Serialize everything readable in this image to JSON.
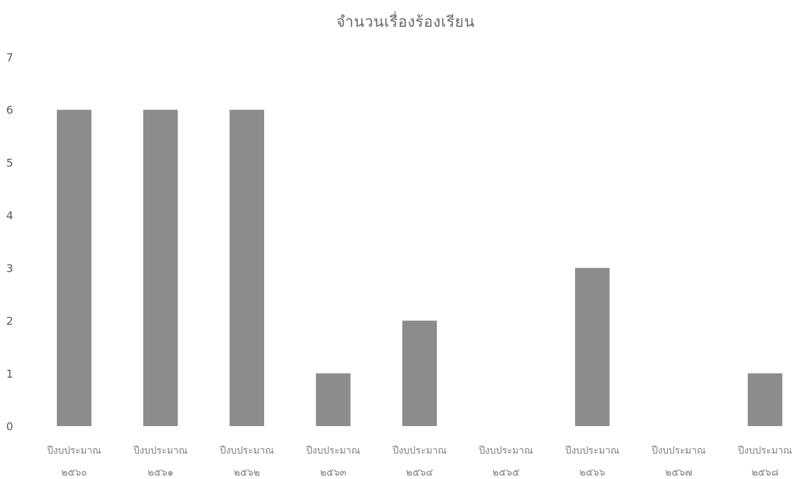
{
  "chart_data": {
    "type": "bar",
    "title": "จำนวนเรื่องร้องเรียน",
    "xlabel": "",
    "ylabel": "",
    "ylim": [
      0,
      7
    ],
    "yticks": [
      0,
      1,
      2,
      3,
      4,
      5,
      6,
      7
    ],
    "grid": false,
    "legend": "none",
    "bar_color": "#8c8c8c",
    "categories": [
      "ปีงบประมาณ ๒๕๖๐",
      "ปีงบประมาณ ๒๕๖๑",
      "ปีงบประมาณ ๒๕๖๒",
      "ปีงบประมาณ ๒๕๖๓",
      "ปีงบประมาณ ๒๕๖๔",
      "ปีงบประมาณ ๒๕๖๕",
      "ปีงบประมาณ ๒๕๖๖",
      "ปีงบประมาณ ๒๕๖๗",
      "ปีงบประมาณ ๒๕๖๘"
    ],
    "category_lines": [
      [
        "ปีงบประมาณ",
        "๒๕๖๐"
      ],
      [
        "ปีงบประมาณ",
        "๒๕๖๑"
      ],
      [
        "ปีงบประมาณ",
        "๒๕๖๒"
      ],
      [
        "ปีงบประมาณ",
        "๒๕๖๓"
      ],
      [
        "ปีงบประมาณ",
        "๒๕๖๔"
      ],
      [
        "ปีงบประมาณ",
        "๒๕๖๕"
      ],
      [
        "ปีงบประมาณ",
        "๒๕๖๖"
      ],
      [
        "ปีงบประมาณ",
        "๒๕๖๗"
      ],
      [
        "ปีงบประมาณ",
        "๒๕๖๘"
      ]
    ],
    "values": [
      6,
      6,
      6,
      1,
      2,
      0,
      3,
      0,
      1
    ]
  }
}
